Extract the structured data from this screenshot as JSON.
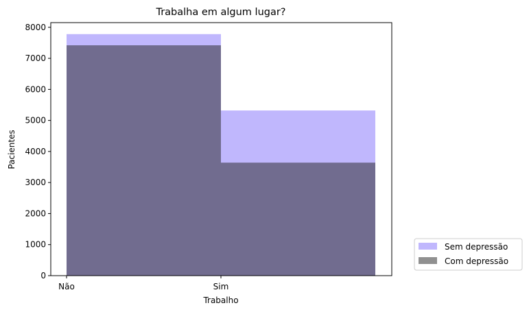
{
  "chart_data": {
    "type": "bar",
    "title": "Trabalha em algum lugar?",
    "xlabel": "Trabalho",
    "ylabel": "Pacientes",
    "categories": [
      "Não",
      "Sim"
    ],
    "ylim": [
      0,
      8150
    ],
    "yticks": [
      0,
      1000,
      2000,
      3000,
      4000,
      5000,
      6000,
      7000,
      8000
    ],
    "grid": false,
    "legend_position": "outside-bottom-right",
    "series": [
      {
        "name": "Sem depressão",
        "values": [
          7780,
          5320
        ],
        "color": "#8c7cfc",
        "opacity": 0.55
      },
      {
        "name": "Com depressão",
        "values": [
          7420,
          3640
        ],
        "color": "#222222",
        "opacity": 0.5
      }
    ]
  }
}
